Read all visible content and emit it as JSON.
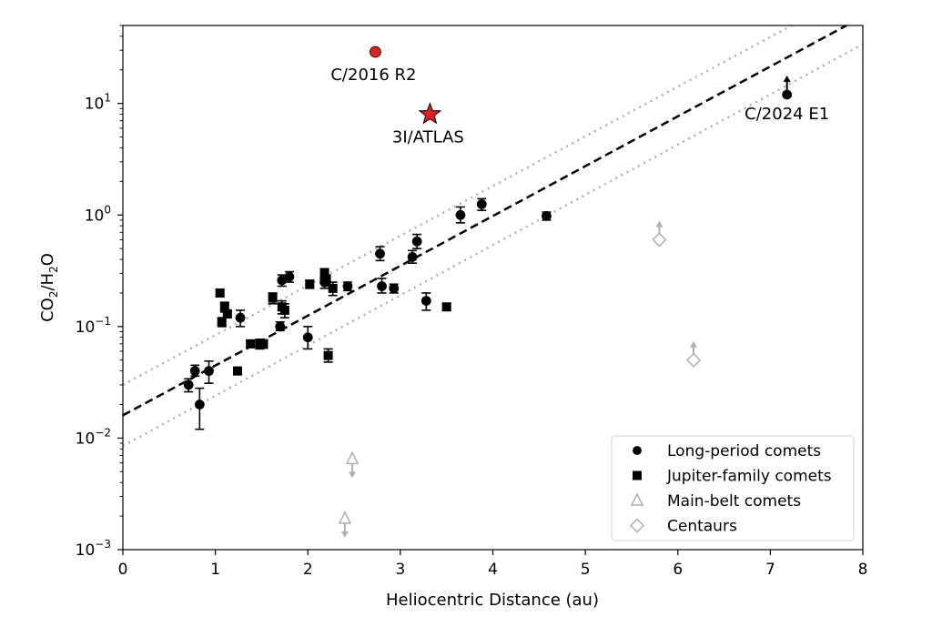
{
  "chart_data": {
    "type": "scatter",
    "xlabel": "Heliocentric Distance (au)",
    "ylabel": {
      "base": "CO",
      "sub1": "2",
      "mid": "/H",
      "sub2": "2",
      "end": "O"
    },
    "xlim": [
      0,
      8
    ],
    "ylim": [
      0.001,
      50
    ],
    "yscale": "log",
    "x_ticks": [
      "0",
      "1",
      "2",
      "3",
      "4",
      "5",
      "6",
      "7",
      "8"
    ],
    "y_ticks": [
      {
        "base": "10",
        "exp": "−3",
        "value": 0.001
      },
      {
        "base": "10",
        "exp": "−2",
        "value": 0.01
      },
      {
        "base": "10",
        "exp": "−1",
        "value": 0.1
      },
      {
        "base": "10",
        "exp": "0",
        "value": 1
      },
      {
        "base": "10",
        "exp": "1",
        "value": 10
      }
    ],
    "legend": {
      "position": "lower right",
      "entries": [
        {
          "label": "Long-period comets",
          "marker": "circle",
          "color": "#000000"
        },
        {
          "label": "Jupiter-family comets",
          "marker": "square",
          "color": "#000000"
        },
        {
          "label": "Main-belt comets",
          "marker": "triangle-open",
          "color": "#b0b0b0"
        },
        {
          "label": "Centaurs",
          "marker": "diamond-open",
          "color": "#b0b0b0"
        }
      ]
    },
    "fit": {
      "style": "dashed",
      "color": "#000000",
      "x": [
        0,
        8
      ],
      "y": [
        0.016,
        60
      ]
    },
    "fit_bounds": [
      {
        "style": "dotted",
        "color": "#b0b0b0",
        "x": [
          0,
          8
        ],
        "y": [
          0.03,
          110
        ]
      },
      {
        "style": "dotted",
        "color": "#b0b0b0",
        "x": [
          0,
          8
        ],
        "y": [
          0.0085,
          34
        ]
      }
    ],
    "series": [
      {
        "name": "Long-period comets",
        "marker": "circle",
        "color": "#000000",
        "points": [
          {
            "x": 0.71,
            "y": 0.03,
            "lo": 0.026,
            "hi": 0.034
          },
          {
            "x": 0.78,
            "y": 0.04,
            "lo": 0.036,
            "hi": 0.045
          },
          {
            "x": 0.83,
            "y": 0.02,
            "lo": 0.012,
            "hi": 0.028
          },
          {
            "x": 0.93,
            "y": 0.04,
            "lo": 0.031,
            "hi": 0.049
          },
          {
            "x": 1.27,
            "y": 0.12,
            "lo": 0.1,
            "hi": 0.14
          },
          {
            "x": 1.7,
            "y": 0.1,
            "lo": 0.092,
            "hi": 0.11
          },
          {
            "x": 1.72,
            "y": 0.26,
            "lo": 0.23,
            "hi": 0.29
          },
          {
            "x": 1.8,
            "y": 0.28,
            "lo": 0.25,
            "hi": 0.31
          },
          {
            "x": 2.0,
            "y": 0.08,
            "lo": 0.063,
            "hi": 0.1
          },
          {
            "x": 2.18,
            "y": 0.25,
            "lo": 0.22,
            "hi": 0.28
          },
          {
            "x": 2.43,
            "y": 0.23,
            "lo": 0.21,
            "hi": 0.25
          },
          {
            "x": 2.78,
            "y": 0.45,
            "lo": 0.39,
            "hi": 0.52
          },
          {
            "x": 2.8,
            "y": 0.23,
            "lo": 0.2,
            "hi": 0.27
          },
          {
            "x": 2.93,
            "y": 0.22,
            "lo": 0.2,
            "hi": 0.24
          },
          {
            "x": 3.13,
            "y": 0.42,
            "lo": 0.37,
            "hi": 0.48
          },
          {
            "x": 3.18,
            "y": 0.58,
            "lo": 0.5,
            "hi": 0.67
          },
          {
            "x": 3.28,
            "y": 0.17,
            "lo": 0.14,
            "hi": 0.2
          },
          {
            "x": 3.65,
            "y": 1.0,
            "lo": 0.85,
            "hi": 1.18
          },
          {
            "x": 3.88,
            "y": 1.25,
            "lo": 1.1,
            "hi": 1.4
          },
          {
            "x": 4.58,
            "y": 0.98,
            "lo": 0.9,
            "hi": 1.06
          },
          {
            "x": 7.18,
            "y": 12,
            "lower_limit": true
          }
        ]
      },
      {
        "name": "Jupiter-family comets",
        "marker": "square",
        "color": "#000000",
        "points": [
          {
            "x": 1.05,
            "y": 0.2,
            "lo": 0.185,
            "hi": 0.215
          },
          {
            "x": 1.07,
            "y": 0.11,
            "lo": 0.1,
            "hi": 0.12
          },
          {
            "x": 1.1,
            "y": 0.15,
            "lo": 0.135,
            "hi": 0.165
          },
          {
            "x": 1.13,
            "y": 0.13,
            "lo": 0.12,
            "hi": 0.14
          },
          {
            "x": 1.24,
            "y": 0.04,
            "lo": 0.037,
            "hi": 0.043
          },
          {
            "x": 1.38,
            "y": 0.07,
            "lo": 0.065,
            "hi": 0.075
          },
          {
            "x": 1.48,
            "y": 0.07,
            "lo": 0.063,
            "hi": 0.077
          },
          {
            "x": 1.52,
            "y": 0.07,
            "lo": 0.064,
            "hi": 0.076
          },
          {
            "x": 1.62,
            "y": 0.18,
            "lo": 0.16,
            "hi": 0.2
          },
          {
            "x": 1.72,
            "y": 0.15,
            "lo": 0.13,
            "hi": 0.17
          },
          {
            "x": 1.75,
            "y": 0.14,
            "lo": 0.12,
            "hi": 0.16
          },
          {
            "x": 2.02,
            "y": 0.24,
            "lo": 0.22,
            "hi": 0.26
          },
          {
            "x": 2.18,
            "y": 0.3,
            "lo": 0.27,
            "hi": 0.33
          },
          {
            "x": 2.2,
            "y": 0.26,
            "lo": 0.23,
            "hi": 0.29
          },
          {
            "x": 2.22,
            "y": 0.055,
            "lo": 0.048,
            "hi": 0.063
          },
          {
            "x": 2.27,
            "y": 0.22,
            "lo": 0.19,
            "hi": 0.25
          },
          {
            "x": 3.5,
            "y": 0.15,
            "lo": 0.14,
            "hi": 0.16
          }
        ]
      },
      {
        "name": "Main-belt comets",
        "marker": "triangle-open",
        "color": "#b0b0b0",
        "points": [
          {
            "x": 2.48,
            "y": 0.0065,
            "upper_limit": true
          },
          {
            "x": 2.4,
            "y": 0.0019,
            "upper_limit": true
          }
        ]
      },
      {
        "name": "Centaurs",
        "marker": "diamond-open",
        "color": "#b0b0b0",
        "points": [
          {
            "x": 5.8,
            "y": 0.6,
            "lower_limit": true
          },
          {
            "x": 6.17,
            "y": 0.05,
            "lower_limit": true
          }
        ]
      }
    ],
    "highlights": [
      {
        "label": "C/2016 R2",
        "x": 2.73,
        "y": 29,
        "marker": "circle",
        "color": "#e02020"
      },
      {
        "label": "3I/ATLAS",
        "x": 3.32,
        "y": 8,
        "marker": "star",
        "color": "#e02020"
      },
      {
        "label": "C/2024 E1",
        "x": 7.18,
        "y": 12,
        "marker": "none",
        "color": "#000000"
      }
    ]
  }
}
